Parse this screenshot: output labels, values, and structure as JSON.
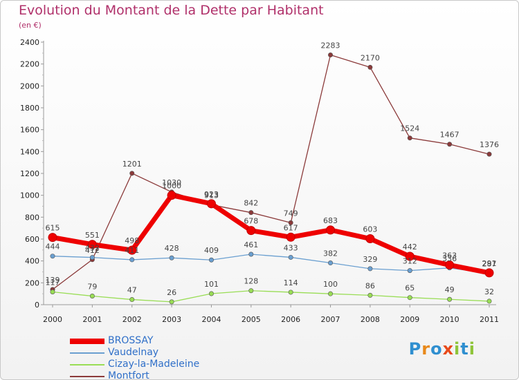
{
  "title": "Evolution du Montant de la Dette par Habitant",
  "subtitle": "(en €)",
  "logo": {
    "text": "Proxiti"
  },
  "chart_data": {
    "type": "line",
    "x": [
      "2000",
      "2001",
      "2002",
      "2003",
      "2004",
      "2005",
      "2006",
      "2007",
      "2008",
      "2009",
      "2010",
      "2011"
    ],
    "ylim": [
      0,
      2400
    ],
    "yticks": [
      0,
      200,
      400,
      600,
      800,
      1000,
      1200,
      1400,
      1600,
      1800,
      2000,
      2200,
      2400
    ],
    "grid": false,
    "legend_position": "bottom-left",
    "series": [
      {
        "name": "BROSSAY",
        "color": "#ee0000",
        "values": [
          615,
          551,
          498,
          1000,
          923,
          678,
          617,
          683,
          603,
          442,
          363,
          291
        ]
      },
      {
        "name": "Vaudelnay",
        "color": "#6a9fd0",
        "values": [
          444,
          432,
          411,
          428,
          409,
          461,
          433,
          382,
          329,
          312,
          336,
          287
        ]
      },
      {
        "name": "Cizay-la-Madeleine",
        "color": "#99dd55",
        "values": [
          117,
          79,
          47,
          26,
          101,
          128,
          114,
          100,
          86,
          65,
          49,
          32
        ]
      },
      {
        "name": "Montfort",
        "color": "#8b3a3a",
        "values": [
          139,
          412,
          1201,
          1030,
          913,
          842,
          749,
          2283,
          2170,
          1524,
          1467,
          1376
        ]
      }
    ]
  }
}
